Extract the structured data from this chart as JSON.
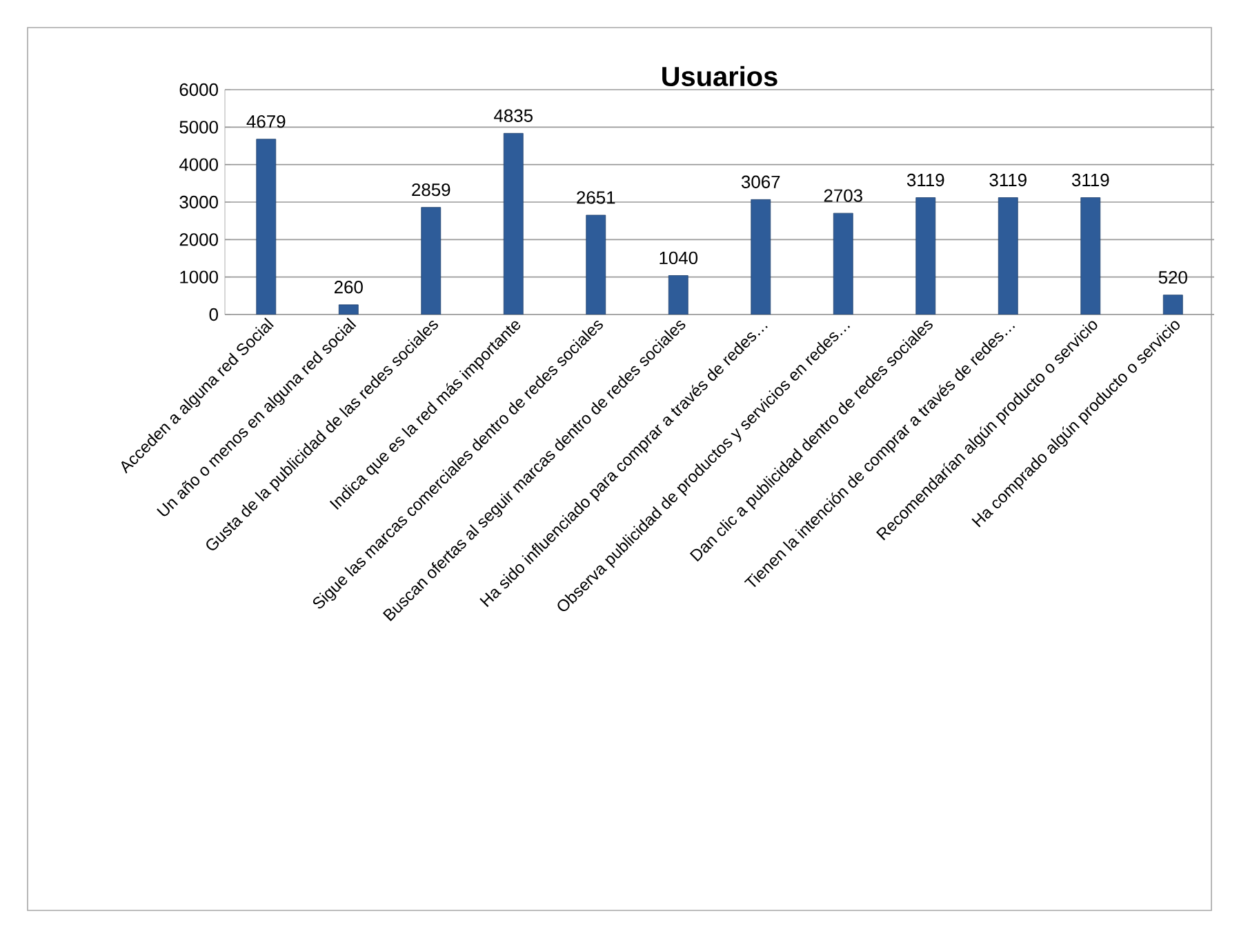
{
  "chart_data": {
    "type": "bar",
    "title": "Usuarios",
    "categories": [
      "Acceden a alguna red Social",
      "Un año o menos en alguna red social",
      "Gusta de la publicidad de las redes sociales",
      "Indica que es la red más importante",
      "Sigue las marcas comerciales dentro de redes sociales",
      "Buscan ofertas al seguir marcas dentro de redes sociales",
      "Ha sido influenciado para comprar a través de redes…",
      "Observa publicidad de productos y servicios en redes…",
      "Dan clic a publicidad dentro de redes sociales",
      "Tienen la intención de comprar a través de redes…",
      "Recomendarían algún producto o servicio",
      "Ha comprado algún producto o servicio"
    ],
    "values": [
      4679,
      260,
      2859,
      4835,
      2651,
      1040,
      3067,
      2703,
      3119,
      3119,
      3119,
      520
    ],
    "color": "#2e5c99",
    "ylim": [
      0,
      6000
    ],
    "yticks": [
      0,
      1000,
      2000,
      3000,
      4000,
      5000,
      6000
    ],
    "grid": "y",
    "data_labels": true
  }
}
